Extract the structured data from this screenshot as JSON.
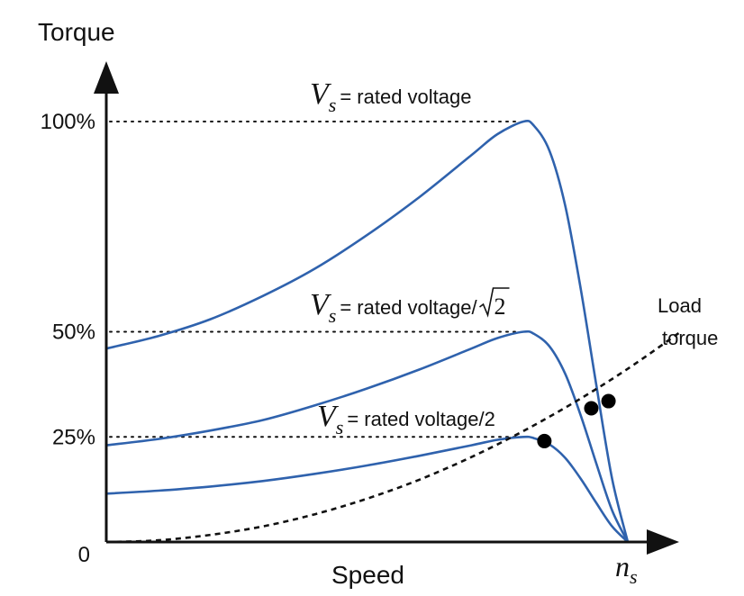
{
  "chart_data": {
    "type": "line",
    "xlabel": "Speed",
    "ylabel": "Torque",
    "x_end_label": "n",
    "x_end_subscript": "s",
    "xlim": [
      0,
      1
    ],
    "ylim": [
      0,
      100
    ],
    "y_ticks": [
      {
        "value": 0,
        "label": "0"
      },
      {
        "value": 25,
        "label": "25%"
      },
      {
        "value": 50,
        "label": "50%"
      },
      {
        "value": 100,
        "label": "100%"
      }
    ],
    "series": [
      {
        "annotation": {
          "symbol": "V",
          "subscript": "s",
          "text": "= rated voltage",
          "sqrt": ""
        },
        "peak": 100,
        "x": [
          0,
          0.1,
          0.2,
          0.3,
          0.4,
          0.5,
          0.6,
          0.7,
          0.75,
          0.8,
          0.82,
          0.85,
          0.88,
          0.91,
          0.94,
          0.97,
          1.0
        ],
        "y": [
          46,
          49,
          53,
          58.5,
          65,
          73,
          82,
          92,
          97,
          100,
          99,
          93,
          80,
          60,
          37,
          15,
          0
        ]
      },
      {
        "annotation": {
          "symbol": "V",
          "subscript": "s",
          "text": "= rated voltage/",
          "sqrt": "2"
        },
        "peak": 50,
        "x": [
          0,
          0.1,
          0.2,
          0.3,
          0.4,
          0.5,
          0.6,
          0.7,
          0.75,
          0.8,
          0.82,
          0.85,
          0.88,
          0.91,
          0.94,
          0.97,
          1.0
        ],
        "y": [
          23,
          24.5,
          26.5,
          29,
          32.5,
          36.5,
          41,
          46,
          48.5,
          50,
          49.5,
          46.5,
          40,
          30,
          18.5,
          7.5,
          0
        ]
      },
      {
        "annotation": {
          "symbol": "V",
          "subscript": "s",
          "text": "= rated voltage/2",
          "sqrt": ""
        },
        "peak": 25,
        "x": [
          0,
          0.1,
          0.2,
          0.3,
          0.4,
          0.5,
          0.6,
          0.7,
          0.75,
          0.8,
          0.82,
          0.85,
          0.88,
          0.91,
          0.94,
          0.97,
          1.0
        ],
        "y": [
          11.5,
          12.2,
          13.2,
          14.5,
          16.2,
          18.2,
          20.5,
          23,
          24.3,
          25,
          24.7,
          23.2,
          20,
          15,
          9.2,
          3.7,
          0
        ]
      }
    ],
    "load_torque": {
      "label_line1": "Load",
      "label_line2": "torque",
      "x": [
        0,
        0.1,
        0.2,
        0.3,
        0.4,
        0.5,
        0.6,
        0.7,
        0.8,
        0.9,
        1.0,
        1.1
      ],
      "y": [
        0,
        0.4,
        1.7,
        3.7,
        6.6,
        10.3,
        14.8,
        20.2,
        26.4,
        33.4,
        41.2,
        49.9
      ]
    },
    "intersections": [
      {
        "x": 0.84,
        "y": 24
      },
      {
        "x": 0.93,
        "y": 31.8
      },
      {
        "x": 0.963,
        "y": 33.5
      }
    ]
  }
}
